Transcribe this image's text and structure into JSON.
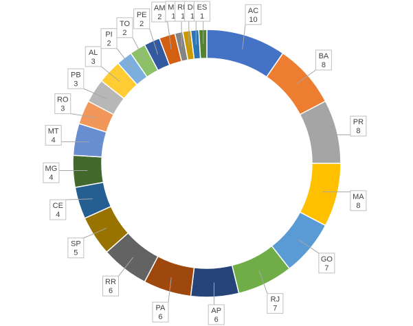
{
  "chart_data": {
    "type": "pie",
    "variant": "doughnut",
    "legend": "none",
    "data_labels": "category and value in callout boxes",
    "slices": [
      {
        "label": "AC",
        "value": 10,
        "color": "#4472c4"
      },
      {
        "label": "BA",
        "value": 8,
        "color": "#ed7d31"
      },
      {
        "label": "PR",
        "value": 8,
        "color": "#a5a5a5"
      },
      {
        "label": "MA",
        "value": 8,
        "color": "#ffc000"
      },
      {
        "label": "GO",
        "value": 7,
        "color": "#5b9bd5"
      },
      {
        "label": "RJ",
        "value": 7,
        "color": "#70ad47"
      },
      {
        "label": "AP",
        "value": 6,
        "color": "#264478"
      },
      {
        "label": "PA",
        "value": 6,
        "color": "#9e480e"
      },
      {
        "label": "RR",
        "value": 6,
        "color": "#636363"
      },
      {
        "label": "SP",
        "value": 5,
        "color": "#997300"
      },
      {
        "label": "CE",
        "value": 4,
        "color": "#255e91"
      },
      {
        "label": "MG",
        "value": 4,
        "color": "#43682b"
      },
      {
        "label": "MT",
        "value": 4,
        "color": "#698ed0"
      },
      {
        "label": "RO",
        "value": 3,
        "color": "#f1975a"
      },
      {
        "label": "PB",
        "value": 3,
        "color": "#b7b7b7"
      },
      {
        "label": "AL",
        "value": 3,
        "color": "#ffcd33"
      },
      {
        "label": "PI",
        "value": 2,
        "color": "#7cafdd"
      },
      {
        "label": "TO",
        "value": 2,
        "color": "#8cc168"
      },
      {
        "label": "PE",
        "value": 2,
        "color": "#335aa1"
      },
      {
        "label": "AM",
        "value": 2,
        "color": "#d26012"
      },
      {
        "label": "MS",
        "value": 1,
        "color": "#848484"
      },
      {
        "label": "RN",
        "value": 1,
        "color": "#cc9a00"
      },
      {
        "label": "DF",
        "value": 1,
        "color": "#2e75b6"
      },
      {
        "label": "ES",
        "value": 1,
        "color": "#548235"
      }
    ]
  }
}
